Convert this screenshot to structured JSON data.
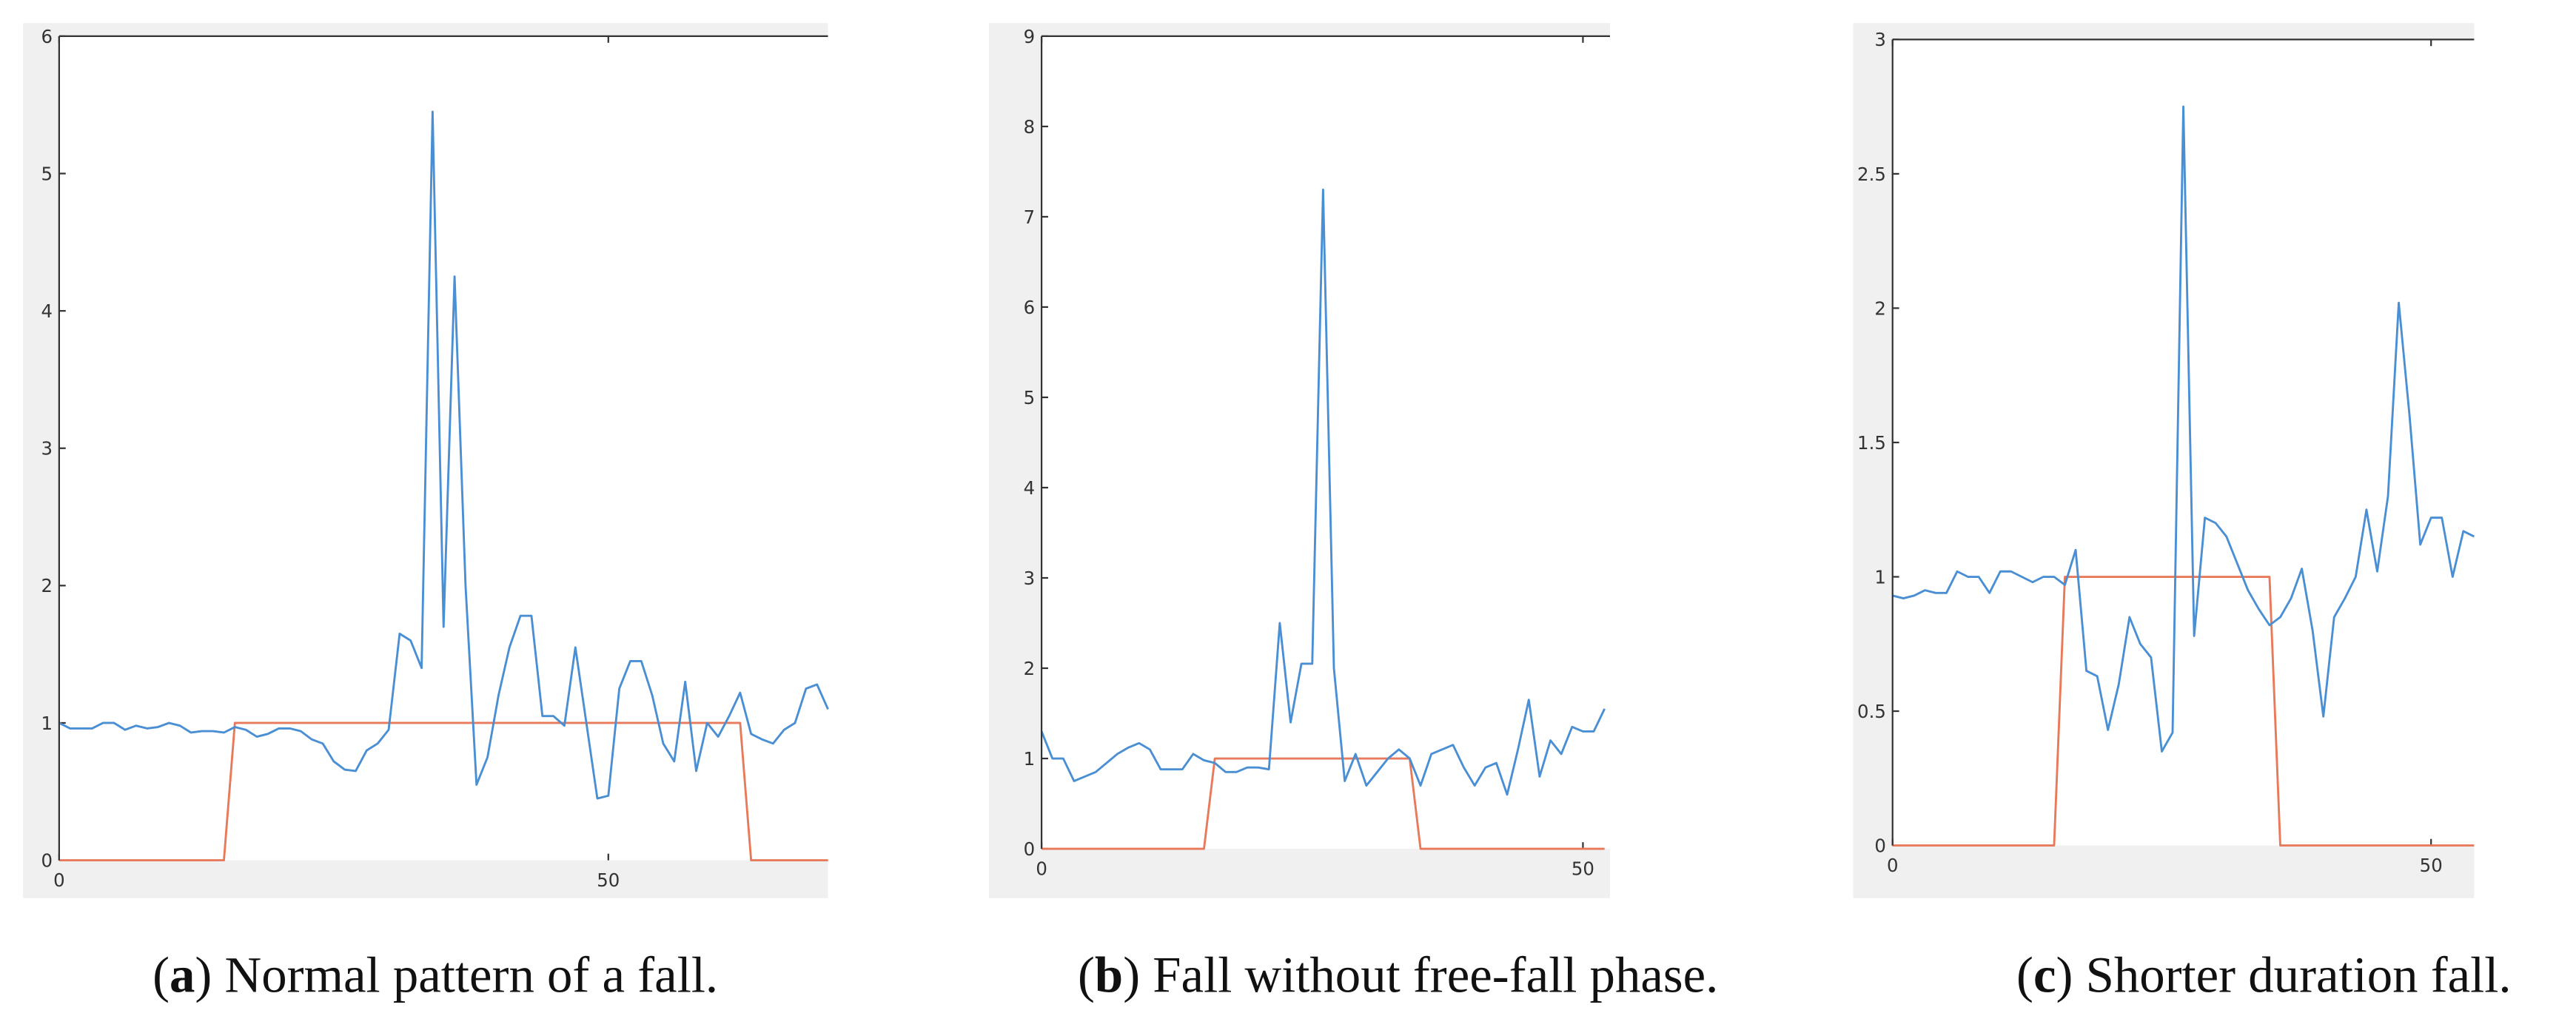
{
  "chart_data": [
    {
      "type": "line",
      "caption": {
        "prefix": "(",
        "label": "a",
        "text": ") Normal pattern of a fall."
      },
      "x": [
        0,
        1,
        2,
        3,
        4,
        5,
        6,
        7,
        8,
        9,
        10,
        11,
        12,
        13,
        14,
        15,
        16,
        17,
        18,
        19,
        20,
        21,
        22,
        23,
        24,
        25,
        26,
        27,
        28,
        29,
        30,
        31,
        32,
        33,
        34,
        35,
        36,
        37,
        38,
        39,
        40,
        41,
        42,
        43,
        44,
        45,
        46,
        47,
        48,
        49,
        50,
        51,
        52,
        53,
        54,
        55,
        56,
        57,
        58,
        59,
        60,
        61,
        62,
        63,
        64,
        65,
        66,
        67,
        68,
        69,
        70
      ],
      "series": [
        {
          "color": "#4a8fd4",
          "values": [
            1.0,
            0.96,
            0.96,
            0.96,
            1.0,
            1.0,
            0.95,
            0.98,
            0.96,
            0.97,
            1.0,
            0.98,
            0.93,
            0.94,
            0.94,
            0.93,
            0.97,
            0.95,
            0.9,
            0.92,
            0.96,
            0.96,
            0.94,
            0.88,
            0.85,
            0.72,
            0.66,
            0.65,
            0.8,
            0.85,
            0.95,
            1.65,
            1.6,
            1.4,
            5.45,
            1.7,
            4.25,
            2.0,
            0.55,
            0.75,
            1.2,
            1.55,
            1.78,
            1.78,
            1.05,
            1.05,
            0.98,
            1.55,
            1.0,
            0.45,
            0.47,
            1.25,
            1.45,
            1.45,
            1.2,
            0.85,
            0.72,
            1.3,
            0.65,
            1.0,
            0.9,
            1.05,
            1.22,
            0.92,
            0.88,
            0.85,
            0.95,
            1.0,
            1.25,
            1.28,
            1.1
          ]
        },
        {
          "color": "#e8795a",
          "values": [
            0,
            0,
            0,
            0,
            0,
            0,
            0,
            0,
            0,
            0,
            0,
            0,
            0,
            0,
            0,
            0,
            1,
            1,
            1,
            1,
            1,
            1,
            1,
            1,
            1,
            1,
            1,
            1,
            1,
            1,
            1,
            1,
            1,
            1,
            1,
            1,
            1,
            1,
            1,
            1,
            1,
            1,
            1,
            1,
            1,
            1,
            1,
            1,
            1,
            1,
            1,
            1,
            1,
            1,
            1,
            1,
            1,
            1,
            1,
            1,
            1,
            1,
            1,
            0,
            0,
            0,
            0,
            0,
            0,
            0,
            0
          ]
        }
      ],
      "xlim": [
        0,
        70
      ],
      "xticks": [
        0,
        50
      ],
      "ylim": [
        0,
        6
      ],
      "yticks": [
        0,
        1,
        2,
        3,
        4,
        5,
        6
      ]
    },
    {
      "type": "line",
      "caption": {
        "prefix": "(",
        "label": "b",
        "text": ") Fall without free-fall phase."
      },
      "x": [
        0,
        1,
        2,
        3,
        4,
        5,
        6,
        7,
        8,
        9,
        10,
        11,
        12,
        13,
        14,
        15,
        16,
        17,
        18,
        19,
        20,
        21,
        22,
        23,
        24,
        25,
        26,
        27,
        28,
        29,
        30,
        31,
        32,
        33,
        34,
        35,
        36,
        37,
        38,
        39,
        40,
        41,
        42,
        43,
        44,
        45,
        46,
        47,
        48,
        49,
        50,
        51,
        52
      ],
      "series": [
        {
          "color": "#4a8fd4",
          "values": [
            1.3,
            1.0,
            1.0,
            0.75,
            0.8,
            0.85,
            0.95,
            1.05,
            1.12,
            1.17,
            1.1,
            0.88,
            0.88,
            0.88,
            1.05,
            0.98,
            0.95,
            0.85,
            0.85,
            0.9,
            0.9,
            0.88,
            2.5,
            1.4,
            2.05,
            2.05,
            7.3,
            2.0,
            0.75,
            1.05,
            0.7,
            0.85,
            1.0,
            1.1,
            1.0,
            0.7,
            1.05,
            1.1,
            1.15,
            0.9,
            0.7,
            0.9,
            0.95,
            0.6,
            1.1,
            1.65,
            0.8,
            1.2,
            1.05,
            1.35,
            1.3,
            1.3,
            1.55
          ]
        },
        {
          "color": "#e8795a",
          "values": [
            0,
            0,
            0,
            0,
            0,
            0,
            0,
            0,
            0,
            0,
            0,
            0,
            0,
            0,
            0,
            0,
            1,
            1,
            1,
            1,
            1,
            1,
            1,
            1,
            1,
            1,
            1,
            1,
            1,
            1,
            1,
            1,
            1,
            1,
            1,
            0,
            0,
            0,
            0,
            0,
            0,
            0,
            0,
            0,
            0,
            0,
            0,
            0,
            0,
            0,
            0,
            0,
            0
          ]
        }
      ],
      "xlim": [
        0,
        52.5
      ],
      "xticks": [
        0,
        50
      ],
      "ylim": [
        0,
        9
      ],
      "yticks": [
        0,
        1,
        2,
        3,
        4,
        5,
        6,
        7,
        8,
        9
      ]
    },
    {
      "type": "line",
      "caption": {
        "prefix": "(",
        "label": "c",
        "text": ") Shorter duration fall."
      },
      "x": [
        0,
        1,
        2,
        3,
        4,
        5,
        6,
        7,
        8,
        9,
        10,
        11,
        12,
        13,
        14,
        15,
        16,
        17,
        18,
        19,
        20,
        21,
        22,
        23,
        24,
        25,
        26,
        27,
        28,
        29,
        30,
        31,
        32,
        33,
        34,
        35,
        36,
        37,
        38,
        39,
        40,
        41,
        42,
        43,
        44,
        45,
        46,
        47,
        48,
        49,
        50,
        51,
        52,
        53,
        54
      ],
      "series": [
        {
          "color": "#4a8fd4",
          "values": [
            0.93,
            0.92,
            0.93,
            0.95,
            0.94,
            0.94,
            1.02,
            1.0,
            1.0,
            0.94,
            1.02,
            1.02,
            1.0,
            0.98,
            1.0,
            1.0,
            0.97,
            1.1,
            0.65,
            0.63,
            0.43,
            0.6,
            0.85,
            0.75,
            0.7,
            0.35,
            0.42,
            2.75,
            0.78,
            1.22,
            1.2,
            1.15,
            1.05,
            0.95,
            0.88,
            0.82,
            0.85,
            0.92,
            1.03,
            0.8,
            0.48,
            0.85,
            0.92,
            1.0,
            1.25,
            1.02,
            1.3,
            2.02,
            1.6,
            1.12,
            1.22,
            1.22,
            1.0,
            1.17,
            1.15
          ]
        },
        {
          "color": "#e8795a",
          "values": [
            0,
            0,
            0,
            0,
            0,
            0,
            0,
            0,
            0,
            0,
            0,
            0,
            0,
            0,
            0,
            0,
            1,
            1,
            1,
            1,
            1,
            1,
            1,
            1,
            1,
            1,
            1,
            1,
            1,
            1,
            1,
            1,
            1,
            1,
            1,
            1,
            0,
            0,
            0,
            0,
            0,
            0,
            0,
            0,
            0,
            0,
            0,
            0,
            0,
            0,
            0,
            0,
            0,
            0,
            0
          ]
        }
      ],
      "xlim": [
        0,
        54
      ],
      "xticks": [
        0,
        50
      ],
      "ylim": [
        0,
        3
      ],
      "yticks": [
        0,
        0.5,
        1,
        1.5,
        2,
        2.5,
        3
      ]
    }
  ]
}
